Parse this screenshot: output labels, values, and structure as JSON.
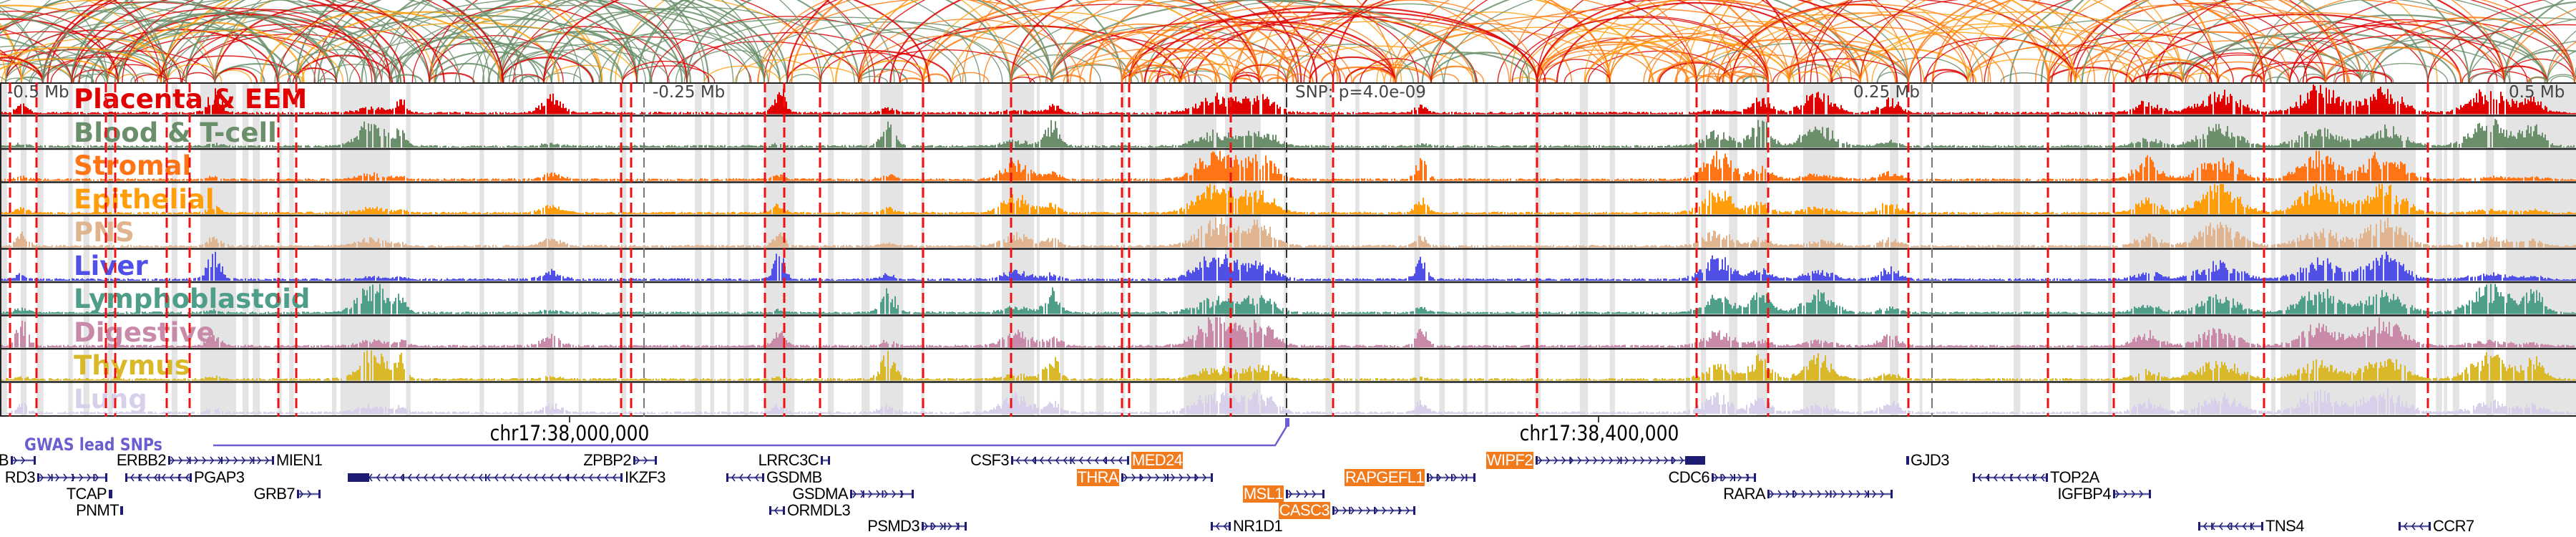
{
  "axis": {
    "labels": [
      "-0.5 Mb",
      "-0.25 Mb",
      "SNP: p=4.0e-09",
      "0.25 Mb",
      "0.5 Mb"
    ]
  },
  "tracks": [
    {
      "name": "Placenta & EEM",
      "color": "#e00000"
    },
    {
      "name": "Blood & T-cell",
      "color": "#6a8f6a"
    },
    {
      "name": "Stromal",
      "color": "#ff7414"
    },
    {
      "name": "Epithelial",
      "color": "#ff9d0a"
    },
    {
      "name": "PNS",
      "color": "#e0b48f"
    },
    {
      "name": "Liver",
      "color": "#5050e6"
    },
    {
      "name": "Lymphoblastoid",
      "color": "#4e9e89"
    },
    {
      "name": "Digestive",
      "color": "#c88aa8"
    },
    {
      "name": "Thymus",
      "color": "#d9b82a"
    },
    {
      "name": "Lung",
      "color": "#d8d0ea"
    }
  ],
  "coordinates": [
    "chr17:38,000,000",
    "chr17:38,400,000"
  ],
  "gwas": {
    "label": "GWAS lead SNPs",
    "color": "#6b5fd0"
  },
  "arc_colors": {
    "green": "#6b8f6b",
    "red": "#dd0000",
    "orange": "#ff7a12",
    "light_orange": "#ffa010"
  },
  "genes": [
    {
      "name": "B",
      "highlighted": false
    },
    {
      "name": "RD3",
      "highlighted": false
    },
    {
      "name": "ERBB2",
      "highlighted": false
    },
    {
      "name": "MIEN1",
      "highlighted": false
    },
    {
      "name": "PGAP3",
      "highlighted": false
    },
    {
      "name": "TCAP",
      "highlighted": false
    },
    {
      "name": "PNMT",
      "highlighted": false
    },
    {
      "name": "GRB7",
      "highlighted": false
    },
    {
      "name": "IKZF3",
      "highlighted": false
    },
    {
      "name": "ZPBP2",
      "highlighted": false
    },
    {
      "name": "LRRC3C",
      "highlighted": false
    },
    {
      "name": "GSDMB",
      "highlighted": false
    },
    {
      "name": "GSDMA",
      "highlighted": false
    },
    {
      "name": "ORMDL3",
      "highlighted": false
    },
    {
      "name": "PSMD3",
      "highlighted": false
    },
    {
      "name": "CSF3",
      "highlighted": false
    },
    {
      "name": "MED24",
      "highlighted": true
    },
    {
      "name": "THRA",
      "highlighted": true
    },
    {
      "name": "MSL1",
      "highlighted": true
    },
    {
      "name": "CASC3",
      "highlighted": true
    },
    {
      "name": "NR1D1",
      "highlighted": false
    },
    {
      "name": "RAPGEFL1",
      "highlighted": true
    },
    {
      "name": "WIPF2",
      "highlighted": true
    },
    {
      "name": "CDC6",
      "highlighted": false
    },
    {
      "name": "GJD3",
      "highlighted": false
    },
    {
      "name": "RARA",
      "highlighted": false
    },
    {
      "name": "TOP2A",
      "highlighted": false
    },
    {
      "name": "IGFBP4",
      "highlighted": false
    },
    {
      "name": "TNS4",
      "highlighted": false
    },
    {
      "name": "CCR7",
      "highlighted": false
    }
  ]
}
